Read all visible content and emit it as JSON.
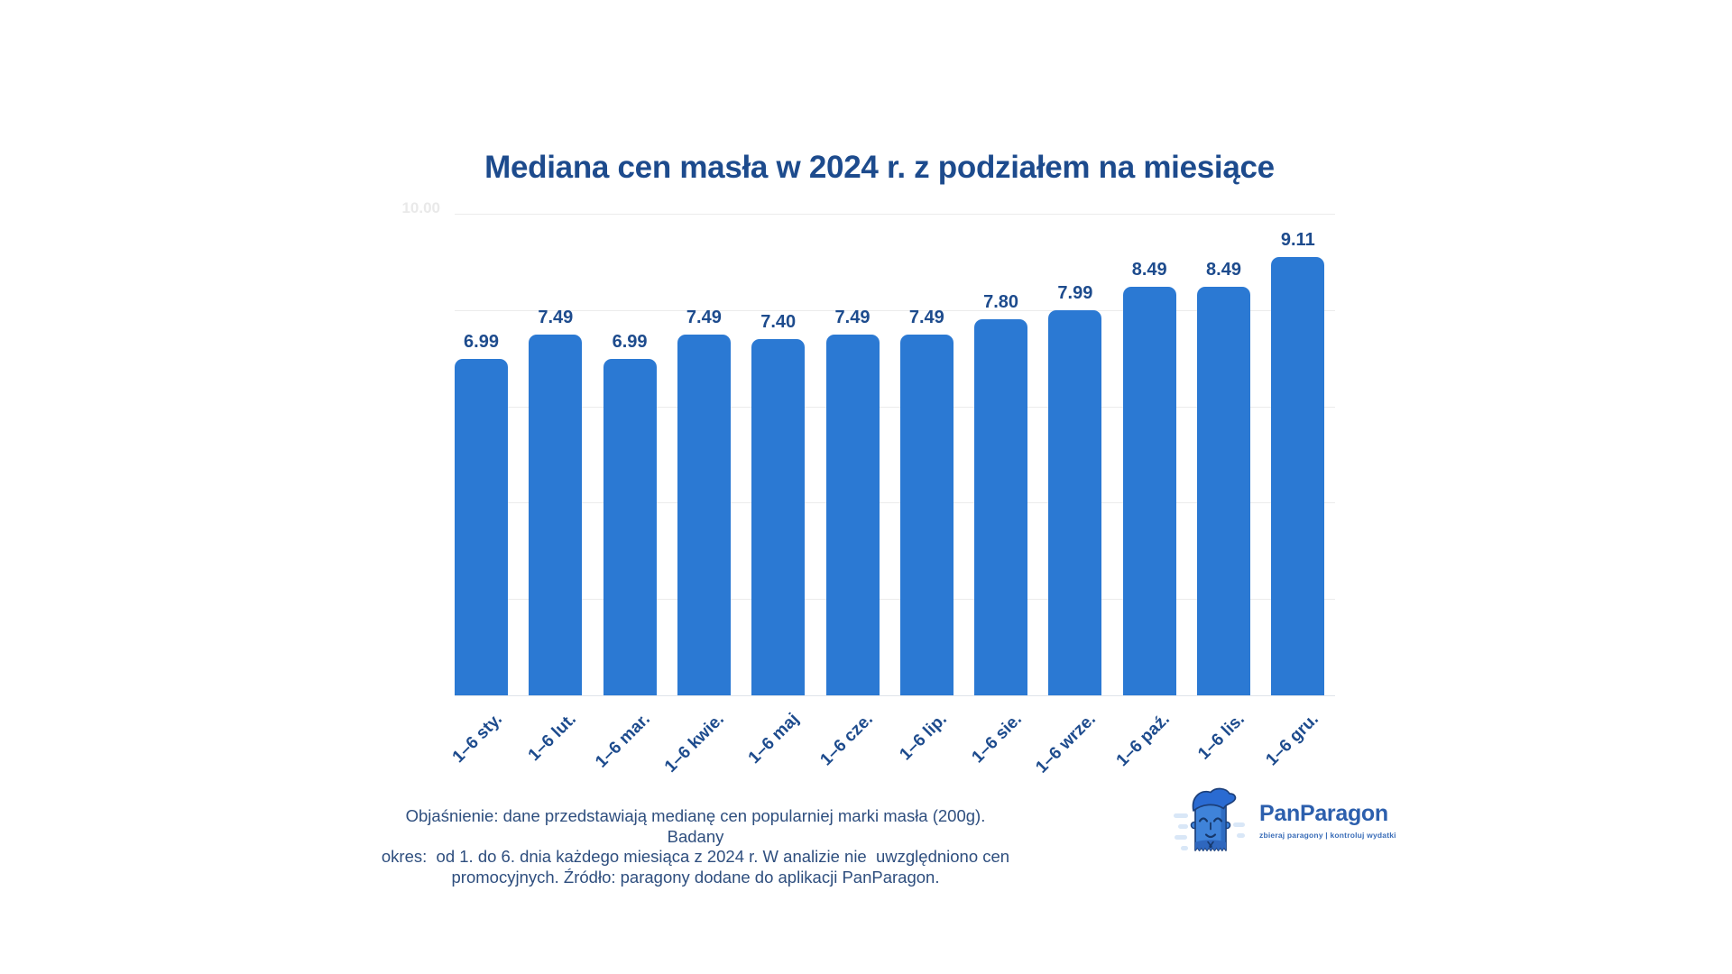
{
  "title": "Mediana cen masła w 2024 r. z podziałem na miesiące",
  "chart_data": {
    "type": "bar",
    "title": "Mediana cen masła w 2024 r. z podziałem na miesiące",
    "categories": [
      "1–6 sty.",
      "1–6 lut.",
      "1–6 mar.",
      "1–6 kwie.",
      "1–6 maj",
      "1–6 cze.",
      "1–6 lip.",
      "1–6 sie.",
      "1–6 wrze.",
      "1–6 paź.",
      "1–6 lis.",
      "1–6 gru."
    ],
    "values": [
      6.99,
      7.49,
      6.99,
      7.49,
      7.4,
      7.49,
      7.49,
      7.8,
      7.99,
      8.49,
      8.49,
      9.11
    ],
    "xlabel": "",
    "ylabel": "",
    "ylim": [
      0,
      10
    ],
    "gridline_values": [
      0,
      2,
      4,
      6,
      8,
      10
    ],
    "visible_y_tick_label": "10.00",
    "grid": true,
    "legend": false,
    "bar_color": "#2b79d3",
    "text_color": "#1d4b8d"
  },
  "footnote": {
    "lines": [
      "Objaśnienie: dane przedstawiają medianę cen popularniej marki masła (200g). Badany",
      "okres:  od 1. do 6. dnia każdego miesiąca z 2024 r. W analizie nie  uwzględniono cen",
      "promocyjnych. Źródło: paragony dodane do aplikacji PanParagon."
    ]
  },
  "logo": {
    "brand": "PanParagon",
    "tagline": "zbieraj paragony | kontroluj wydatki"
  },
  "colors": {
    "background": "#ffffff",
    "title": "#1d4b8d",
    "bar": "#2b79d3",
    "gridline": "#ebebeb",
    "faint_tick": "#e9e9e9",
    "footnote": "#2e4e7e",
    "logo_text": "#2c5fad"
  }
}
